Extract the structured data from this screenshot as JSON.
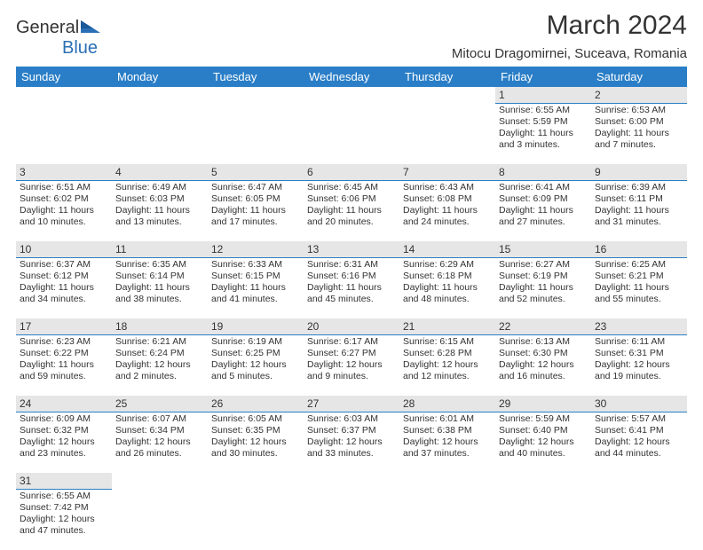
{
  "logo": {
    "text1": "General",
    "text2": "Blue"
  },
  "title": "March 2024",
  "location": "Mitocu Dragomirnei, Suceava, Romania",
  "colors": {
    "header_bg": "#2a7ec7",
    "daynum_bg": "#e6e6e6",
    "border": "#2a7ec7"
  },
  "days_of_week": [
    "Sunday",
    "Monday",
    "Tuesday",
    "Wednesday",
    "Thursday",
    "Friday",
    "Saturday"
  ],
  "weeks": [
    [
      null,
      null,
      null,
      null,
      null,
      {
        "n": "1",
        "sr": "Sunrise: 6:55 AM",
        "ss": "Sunset: 5:59 PM",
        "d1": "Daylight: 11 hours",
        "d2": "and 3 minutes."
      },
      {
        "n": "2",
        "sr": "Sunrise: 6:53 AM",
        "ss": "Sunset: 6:00 PM",
        "d1": "Daylight: 11 hours",
        "d2": "and 7 minutes."
      }
    ],
    [
      {
        "n": "3",
        "sr": "Sunrise: 6:51 AM",
        "ss": "Sunset: 6:02 PM",
        "d1": "Daylight: 11 hours",
        "d2": "and 10 minutes."
      },
      {
        "n": "4",
        "sr": "Sunrise: 6:49 AM",
        "ss": "Sunset: 6:03 PM",
        "d1": "Daylight: 11 hours",
        "d2": "and 13 minutes."
      },
      {
        "n": "5",
        "sr": "Sunrise: 6:47 AM",
        "ss": "Sunset: 6:05 PM",
        "d1": "Daylight: 11 hours",
        "d2": "and 17 minutes."
      },
      {
        "n": "6",
        "sr": "Sunrise: 6:45 AM",
        "ss": "Sunset: 6:06 PM",
        "d1": "Daylight: 11 hours",
        "d2": "and 20 minutes."
      },
      {
        "n": "7",
        "sr": "Sunrise: 6:43 AM",
        "ss": "Sunset: 6:08 PM",
        "d1": "Daylight: 11 hours",
        "d2": "and 24 minutes."
      },
      {
        "n": "8",
        "sr": "Sunrise: 6:41 AM",
        "ss": "Sunset: 6:09 PM",
        "d1": "Daylight: 11 hours",
        "d2": "and 27 minutes."
      },
      {
        "n": "9",
        "sr": "Sunrise: 6:39 AM",
        "ss": "Sunset: 6:11 PM",
        "d1": "Daylight: 11 hours",
        "d2": "and 31 minutes."
      }
    ],
    [
      {
        "n": "10",
        "sr": "Sunrise: 6:37 AM",
        "ss": "Sunset: 6:12 PM",
        "d1": "Daylight: 11 hours",
        "d2": "and 34 minutes."
      },
      {
        "n": "11",
        "sr": "Sunrise: 6:35 AM",
        "ss": "Sunset: 6:14 PM",
        "d1": "Daylight: 11 hours",
        "d2": "and 38 minutes."
      },
      {
        "n": "12",
        "sr": "Sunrise: 6:33 AM",
        "ss": "Sunset: 6:15 PM",
        "d1": "Daylight: 11 hours",
        "d2": "and 41 minutes."
      },
      {
        "n": "13",
        "sr": "Sunrise: 6:31 AM",
        "ss": "Sunset: 6:16 PM",
        "d1": "Daylight: 11 hours",
        "d2": "and 45 minutes."
      },
      {
        "n": "14",
        "sr": "Sunrise: 6:29 AM",
        "ss": "Sunset: 6:18 PM",
        "d1": "Daylight: 11 hours",
        "d2": "and 48 minutes."
      },
      {
        "n": "15",
        "sr": "Sunrise: 6:27 AM",
        "ss": "Sunset: 6:19 PM",
        "d1": "Daylight: 11 hours",
        "d2": "and 52 minutes."
      },
      {
        "n": "16",
        "sr": "Sunrise: 6:25 AM",
        "ss": "Sunset: 6:21 PM",
        "d1": "Daylight: 11 hours",
        "d2": "and 55 minutes."
      }
    ],
    [
      {
        "n": "17",
        "sr": "Sunrise: 6:23 AM",
        "ss": "Sunset: 6:22 PM",
        "d1": "Daylight: 11 hours",
        "d2": "and 59 minutes."
      },
      {
        "n": "18",
        "sr": "Sunrise: 6:21 AM",
        "ss": "Sunset: 6:24 PM",
        "d1": "Daylight: 12 hours",
        "d2": "and 2 minutes."
      },
      {
        "n": "19",
        "sr": "Sunrise: 6:19 AM",
        "ss": "Sunset: 6:25 PM",
        "d1": "Daylight: 12 hours",
        "d2": "and 5 minutes."
      },
      {
        "n": "20",
        "sr": "Sunrise: 6:17 AM",
        "ss": "Sunset: 6:27 PM",
        "d1": "Daylight: 12 hours",
        "d2": "and 9 minutes."
      },
      {
        "n": "21",
        "sr": "Sunrise: 6:15 AM",
        "ss": "Sunset: 6:28 PM",
        "d1": "Daylight: 12 hours",
        "d2": "and 12 minutes."
      },
      {
        "n": "22",
        "sr": "Sunrise: 6:13 AM",
        "ss": "Sunset: 6:30 PM",
        "d1": "Daylight: 12 hours",
        "d2": "and 16 minutes."
      },
      {
        "n": "23",
        "sr": "Sunrise: 6:11 AM",
        "ss": "Sunset: 6:31 PM",
        "d1": "Daylight: 12 hours",
        "d2": "and 19 minutes."
      }
    ],
    [
      {
        "n": "24",
        "sr": "Sunrise: 6:09 AM",
        "ss": "Sunset: 6:32 PM",
        "d1": "Daylight: 12 hours",
        "d2": "and 23 minutes."
      },
      {
        "n": "25",
        "sr": "Sunrise: 6:07 AM",
        "ss": "Sunset: 6:34 PM",
        "d1": "Daylight: 12 hours",
        "d2": "and 26 minutes."
      },
      {
        "n": "26",
        "sr": "Sunrise: 6:05 AM",
        "ss": "Sunset: 6:35 PM",
        "d1": "Daylight: 12 hours",
        "d2": "and 30 minutes."
      },
      {
        "n": "27",
        "sr": "Sunrise: 6:03 AM",
        "ss": "Sunset: 6:37 PM",
        "d1": "Daylight: 12 hours",
        "d2": "and 33 minutes."
      },
      {
        "n": "28",
        "sr": "Sunrise: 6:01 AM",
        "ss": "Sunset: 6:38 PM",
        "d1": "Daylight: 12 hours",
        "d2": "and 37 minutes."
      },
      {
        "n": "29",
        "sr": "Sunrise: 5:59 AM",
        "ss": "Sunset: 6:40 PM",
        "d1": "Daylight: 12 hours",
        "d2": "and 40 minutes."
      },
      {
        "n": "30",
        "sr": "Sunrise: 5:57 AM",
        "ss": "Sunset: 6:41 PM",
        "d1": "Daylight: 12 hours",
        "d2": "and 44 minutes."
      }
    ],
    [
      {
        "n": "31",
        "sr": "Sunrise: 6:55 AM",
        "ss": "Sunset: 7:42 PM",
        "d1": "Daylight: 12 hours",
        "d2": "and 47 minutes."
      },
      null,
      null,
      null,
      null,
      null,
      null
    ]
  ]
}
